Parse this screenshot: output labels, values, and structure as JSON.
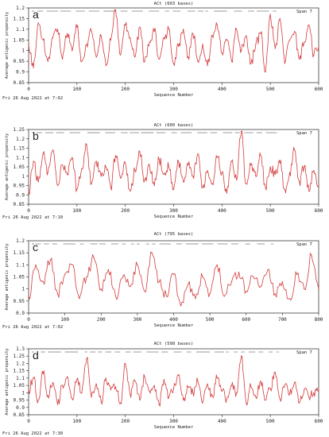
{
  "colors": {
    "series": "#d43a3a",
    "axis": "#222222",
    "text": "#222222",
    "epitope_marks": "#b8b8b8"
  },
  "chart_data": [
    {
      "type": "line",
      "panel_label": "a",
      "title": "ACt  (603 bases)",
      "xlabel": "Sequence Number",
      "ylabel": "Average antigenic propensity",
      "span_label": "Span 7",
      "footer": "Fri 26 Aug 2022 at 7:02",
      "xlim": [
        0,
        600
      ],
      "ylim": [
        0.85,
        1.2
      ],
      "xticks": [
        0,
        100,
        200,
        300,
        400,
        500,
        600
      ],
      "yticks": [
        0.85,
        0.9,
        0.95,
        1,
        1.05,
        1.1,
        1.15,
        1.2
      ],
      "ytick_labels": [
        "0.85",
        "0.9",
        "0.95",
        "1",
        "1.05",
        "1.1",
        "1.15",
        "1.2"
      ],
      "series": [
        {
          "x": [
            0,
            10,
            20,
            30,
            40,
            50,
            60,
            70,
            80,
            90,
            100,
            110,
            120,
            130,
            140,
            150,
            160,
            170,
            180,
            190,
            200,
            210,
            220,
            230,
            240,
            250,
            260,
            270,
            280,
            290,
            300,
            310,
            320,
            330,
            340,
            350,
            360,
            370,
            380,
            390,
            400,
            410,
            420,
            430,
            440,
            450,
            460,
            470,
            480,
            490,
            500,
            510,
            520,
            530,
            540,
            550,
            560,
            570,
            580,
            590,
            600
          ],
          "y": [
            1.03,
            0.92,
            1.13,
            1.05,
            0.95,
            1.06,
            1.1,
            0.96,
            1.08,
            1.0,
            1.11,
            0.95,
            1.03,
            1.09,
            0.97,
            1.07,
            0.93,
            1.05,
            1.19,
            0.98,
            1.12,
            1.06,
            0.97,
            1.11,
            0.95,
            1.04,
            1.09,
            0.96,
            1.06,
            1.1,
            0.94,
            1.02,
            1.1,
            0.97,
            1.08,
            0.95,
            1.03,
            0.93,
            1.07,
            1.12,
            0.99,
            1.05,
            0.95,
            1.1,
            1.0,
            1.07,
            0.94,
            1.03,
            1.08,
            0.9,
            1.17,
            1.01,
            1.15,
            0.94,
            1.05,
            1.09,
            0.96,
            1.04,
            1.12,
            0.98,
            1.02
          ]
        }
      ]
    },
    {
      "type": "line",
      "panel_label": "b",
      "title": "ACt  (600 bases)",
      "xlabel": "Sequence Number",
      "ylabel": "Average antigenic propensity",
      "span_label": "Span 7",
      "footer": "Fri 26 Aug 2022 at 7:10",
      "xlim": [
        0,
        600
      ],
      "ylim": [
        0.85,
        1.25
      ],
      "xticks": [
        0,
        100,
        200,
        300,
        400,
        500,
        600
      ],
      "yticks": [
        0.85,
        0.9,
        0.95,
        1,
        1.05,
        1.1,
        1.15,
        1.2,
        1.25
      ],
      "ytick_labels": [
        "0.85",
        "0.9",
        "0.95",
        "1",
        "1.05",
        "1.1",
        "1.15",
        "1.2",
        "1.25"
      ],
      "series": [
        {
          "x": [
            0,
            10,
            20,
            30,
            40,
            50,
            60,
            70,
            80,
            90,
            100,
            110,
            120,
            130,
            140,
            150,
            160,
            170,
            180,
            190,
            200,
            210,
            220,
            230,
            240,
            250,
            260,
            270,
            280,
            290,
            300,
            310,
            320,
            330,
            340,
            350,
            360,
            370,
            380,
            390,
            400,
            410,
            420,
            430,
            440,
            450,
            460,
            470,
            480,
            490,
            500,
            510,
            520,
            530,
            540,
            550,
            560,
            570,
            580,
            590,
            600
          ],
          "y": [
            0.92,
            1.08,
            0.97,
            1.12,
            1.02,
            1.14,
            0.95,
            1.06,
            1.01,
            1.1,
            0.93,
            1.04,
            1.17,
            0.96,
            1.08,
            1.0,
            1.05,
            0.94,
            1.11,
            0.99,
            1.07,
            0.92,
            1.03,
            1.13,
            0.98,
            1.06,
            0.95,
            1.09,
            1.01,
            1.05,
            0.93,
            1.08,
            0.97,
            1.06,
            1.0,
            1.12,
            0.94,
            1.03,
            0.96,
            1.1,
            1.02,
            0.91,
            1.08,
            0.98,
            1.24,
            0.96,
            1.06,
            1.0,
            1.11,
            0.94,
            1.05,
            1.01,
            1.07,
            0.93,
            1.02,
            1.14,
            0.97,
            1.05,
            0.92,
            1.03,
            0.95
          ]
        }
      ]
    },
    {
      "type": "line",
      "panel_label": "c",
      "title": "ACt  (795 bases)",
      "xlabel": "Sequence Number",
      "ylabel": "Average antigenic propensity",
      "span_label": "Span 7",
      "footer": "Fri 26 Aug 2022 at 7:02",
      "xlim": [
        0,
        800
      ],
      "ylim": [
        0.9,
        1.2
      ],
      "xticks": [
        0,
        100,
        200,
        300,
        400,
        500,
        600,
        700,
        800
      ],
      "yticks": [
        0.9,
        0.95,
        1,
        1.05,
        1.1,
        1.15,
        1.2
      ],
      "ytick_labels": [
        "0.9",
        "0.95",
        "1",
        "1.05",
        "1.1",
        "1.15",
        "1.2"
      ],
      "series": [
        {
          "x": [
            0,
            20,
            40,
            60,
            80,
            100,
            120,
            140,
            160,
            180,
            200,
            220,
            240,
            260,
            280,
            300,
            320,
            340,
            360,
            380,
            400,
            420,
            440,
            460,
            480,
            500,
            520,
            540,
            560,
            580,
            600,
            620,
            640,
            660,
            680,
            700,
            720,
            740,
            760,
            780,
            800
          ],
          "y": [
            0.97,
            1.1,
            1.03,
            1.12,
            0.98,
            1.06,
            1.1,
            0.96,
            1.05,
            1.13,
            1.0,
            1.08,
            0.97,
            1.05,
            1.01,
            1.1,
            0.99,
            1.15,
            1.03,
            0.97,
            1.06,
            0.93,
            1.02,
            0.96,
            1.05,
            0.98,
            1.1,
            0.97,
            1.03,
            1.07,
            0.99,
            1.05,
            1.01,
            1.08,
            0.98,
            1.03,
            0.96,
            1.06,
            1.0,
            1.14,
            1.0
          ]
        }
      ]
    },
    {
      "type": "line",
      "panel_label": "d",
      "title": "ACt  (598 bases)",
      "xlabel": "Sequence Number",
      "ylabel": "Average antigenic propensity",
      "span_label": "Span 7",
      "footer": "Fri 26 Aug 2022 at 7:30",
      "xlim": [
        0,
        600
      ],
      "ylim": [
        0.85,
        1.3
      ],
      "xticks": [
        0,
        100,
        200,
        300,
        400,
        500,
        600
      ],
      "yticks": [
        0.85,
        0.9,
        0.95,
        1,
        1.05,
        1.1,
        1.15,
        1.2,
        1.25,
        1.3
      ],
      "ytick_labels": [
        "0.85",
        "0.9",
        "0.95",
        "1",
        "1.05",
        "1.1",
        "1.15",
        "1.2",
        "1.25",
        "1.3"
      ],
      "series": [
        {
          "x": [
            0,
            10,
            20,
            30,
            40,
            50,
            60,
            70,
            80,
            90,
            100,
            110,
            120,
            130,
            140,
            150,
            160,
            170,
            180,
            190,
            200,
            210,
            220,
            230,
            240,
            250,
            260,
            270,
            280,
            290,
            300,
            310,
            320,
            330,
            340,
            350,
            360,
            370,
            380,
            390,
            400,
            410,
            420,
            430,
            440,
            450,
            460,
            470,
            480,
            490,
            500,
            510,
            520,
            530,
            540,
            550,
            560,
            570,
            580,
            590,
            600
          ],
          "y": [
            1.02,
            1.1,
            0.95,
            1.13,
            0.98,
            1.07,
            0.92,
            1.05,
            1.11,
            0.96,
            1.09,
            1.0,
            1.23,
            0.97,
            1.06,
            0.94,
            1.1,
            1.02,
            1.04,
            0.93,
            1.2,
            0.99,
            1.08,
            0.95,
            1.11,
            1.01,
            1.05,
            0.92,
            1.09,
            0.97,
            1.03,
            1.12,
            0.95,
            1.04,
            1.0,
            1.08,
            0.93,
            1.06,
            0.98,
            1.1,
            1.01,
            0.96,
            1.05,
            1.0,
            1.25,
            0.93,
            1.04,
            0.97,
            1.08,
            0.95,
            1.03,
            1.14,
            0.96,
            1.05,
            0.99,
            1.07,
            0.93,
            1.02,
            0.97,
            1.0,
            1.01
          ]
        }
      ]
    }
  ]
}
